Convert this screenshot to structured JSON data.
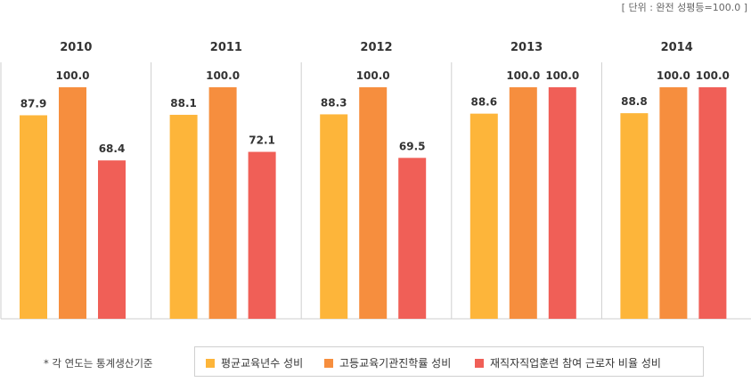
{
  "unit_note": "[ 단위 : 완전 성평등=100.0 ]",
  "footnote": "* 각 연도는 통계생산기준",
  "colors": {
    "series1": "#FDB53A",
    "series2": "#F68E3E",
    "series3": "#F05F57"
  },
  "legend": [
    {
      "label": "평균교육년수 성비",
      "color": "#FDB53A"
    },
    {
      "label": "고등교육기관진학률 성비",
      "color": "#F68E3E"
    },
    {
      "label": "재직자직업훈련 참여 근로자 비율 성비",
      "color": "#F05F57"
    }
  ],
  "chart_data": {
    "type": "bar",
    "categories": [
      "2010",
      "2011",
      "2012",
      "2013",
      "2014"
    ],
    "series": [
      {
        "name": "평균교육년수 성비",
        "values": [
          87.9,
          88.1,
          88.3,
          88.6,
          88.8
        ],
        "labels": [
          "87.9",
          "88.1",
          "88.3",
          "88.6",
          "88.8"
        ]
      },
      {
        "name": "고등교육기관진학률 성비",
        "values": [
          100.0,
          100.0,
          100.0,
          100.0,
          100.0
        ],
        "labels": [
          "100.0",
          "100.0",
          "100.0",
          "100.0",
          "100.0"
        ]
      },
      {
        "name": "재직자직업훈련 참여 근로자 비율 성비",
        "values": [
          68.4,
          72.1,
          69.5,
          100.0,
          100.0
        ],
        "labels": [
          "68.4",
          "72.1",
          "69.5",
          "100.0",
          "100.0"
        ]
      }
    ],
    "ylim": [
      0,
      100
    ],
    "grid": false,
    "legend_position": "bottom"
  }
}
